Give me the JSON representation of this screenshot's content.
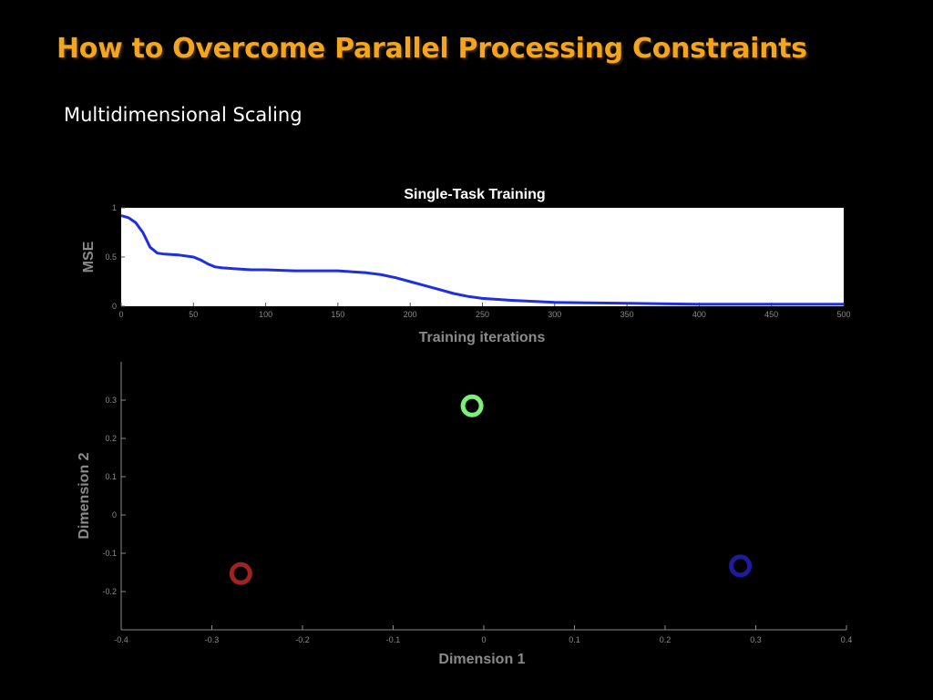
{
  "slide": {
    "title": "How to Overcome Parallel Processing Constraints",
    "subtitle": "Multidimensional Scaling"
  },
  "colors": {
    "title": "#f4a51d",
    "background": "#000000",
    "axis_text": "#8a8a8a",
    "mse_line": "#1f2fe0",
    "point_green": "#7cf07a",
    "point_red": "#a02222",
    "point_blue": "#1c1c9c"
  },
  "chart_data": [
    {
      "type": "line",
      "title": "Single-Task Training",
      "xlabel": "Training iterations",
      "ylabel": "MSE",
      "xlim": [
        0,
        500
      ],
      "ylim": [
        0,
        1
      ],
      "xticks": [
        "0",
        "50",
        "100",
        "150",
        "200",
        "250",
        "300",
        "350",
        "400",
        "450",
        "500"
      ],
      "yticks": [
        "0",
        "0.5",
        "1"
      ],
      "background": "white",
      "grid": false,
      "series": [
        {
          "x": [
            0,
            5,
            10,
            15,
            20,
            25,
            30,
            40,
            50,
            55,
            60,
            65,
            70,
            80,
            90,
            100,
            120,
            140,
            150,
            160,
            170,
            180,
            190,
            200,
            210,
            220,
            230,
            240,
            250,
            270,
            300,
            350,
            400,
            450,
            500
          ],
          "y": [
            0.92,
            0.9,
            0.85,
            0.75,
            0.6,
            0.54,
            0.53,
            0.52,
            0.5,
            0.47,
            0.43,
            0.4,
            0.39,
            0.38,
            0.37,
            0.37,
            0.36,
            0.36,
            0.36,
            0.35,
            0.34,
            0.32,
            0.29,
            0.25,
            0.21,
            0.17,
            0.13,
            0.1,
            0.08,
            0.06,
            0.04,
            0.03,
            0.02,
            0.02,
            0.02
          ]
        }
      ]
    },
    {
      "type": "scatter",
      "xlabel": "Dimension 1",
      "ylabel": "Dimension 2",
      "xlim": [
        -0.4,
        0.4
      ],
      "ylim": [
        -0.3,
        0.4
      ],
      "xticks": [
        "-0.4",
        "-0.3",
        "-0.2",
        "-0.1",
        "0",
        "0.1",
        "0.2",
        "0.3",
        "0.4"
      ],
      "yticks": [
        "-0.2",
        "-0.1",
        "0",
        "0.1",
        "0.2",
        "0.3"
      ],
      "background": "black",
      "grid": false,
      "points": [
        {
          "x": -0.013,
          "y": 0.285,
          "color": "green"
        },
        {
          "x": -0.268,
          "y": -0.153,
          "color": "red"
        },
        {
          "x": 0.283,
          "y": -0.133,
          "color": "blue"
        }
      ]
    }
  ]
}
